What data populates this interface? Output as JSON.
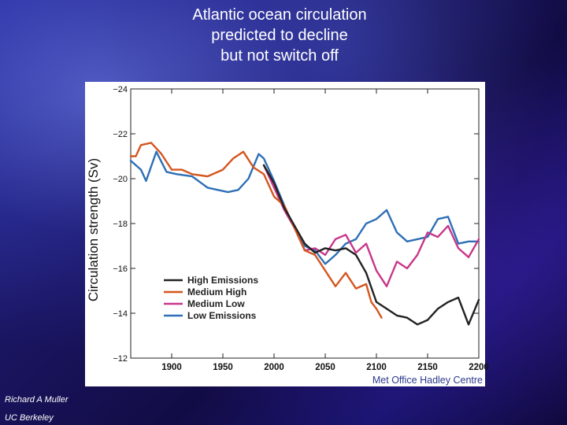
{
  "slide": {
    "title_lines": [
      "Atlantic ocean circulation",
      "predicted to decline",
      "but not switch off"
    ],
    "footer_lines": [
      "Richard A Muller",
      "UC Berkeley"
    ]
  },
  "chart_data": {
    "type": "line",
    "title": "",
    "xlabel": "",
    "ylabel": "Circulation strength (Sv)",
    "credit": "Met Office Hadley Centre",
    "xlim": [
      1860,
      2200
    ],
    "ylim": [
      -24,
      -12
    ],
    "y_inverted": true,
    "x_ticks": [
      1900,
      1950,
      2000,
      2050,
      2100,
      2150,
      2200
    ],
    "y_ticks": [
      -24,
      -22,
      -20,
      -18,
      -16,
      -14,
      -12
    ],
    "grid": false,
    "legend": {
      "position": "lower-left",
      "entries": [
        "High Emissions",
        "Medium High",
        "Medium Low",
        "Low Emissions"
      ]
    },
    "series": [
      {
        "name": "Low Emissions",
        "color": "#2e6fb5",
        "x": [
          1860,
          1870,
          1875,
          1885,
          1895,
          1905,
          1920,
          1935,
          1945,
          1955,
          1965,
          1975,
          1985,
          1990,
          2000,
          2010,
          2020,
          2030,
          2040,
          2050,
          2055,
          2060,
          2070,
          2080,
          2090,
          2100,
          2110,
          2120,
          2130,
          2140,
          2150,
          2160,
          2170,
          2180,
          2190,
          2200
        ],
        "y": [
          -20.8,
          -20.4,
          -19.9,
          -21.2,
          -20.3,
          -20.2,
          -20.1,
          -19.6,
          -19.5,
          -19.4,
          -19.5,
          -20.0,
          -21.1,
          -20.9,
          -19.9,
          -18.8,
          -17.8,
          -17.0,
          -16.8,
          -16.2,
          -16.4,
          -16.6,
          -17.1,
          -17.3,
          -18.0,
          -18.2,
          -18.6,
          -17.6,
          -17.2,
          -17.3,
          -17.4,
          -18.2,
          -18.3,
          -17.1,
          -17.2,
          -17.2
        ]
      },
      {
        "name": "Medium Low",
        "color": "#c8378a",
        "x": [
          1990,
          2000,
          2010,
          2020,
          2030,
          2040,
          2050,
          2060,
          2070,
          2080,
          2090,
          2100,
          2110,
          2120,
          2130,
          2140,
          2150,
          2160,
          2170,
          2180,
          2190,
          2200
        ],
        "y": [
          -20.6,
          -19.6,
          -18.6,
          -17.8,
          -16.8,
          -16.9,
          -16.6,
          -17.3,
          -17.5,
          -16.7,
          -17.1,
          -15.9,
          -15.2,
          -16.3,
          -16.0,
          -16.6,
          -17.6,
          -17.4,
          -17.9,
          -16.9,
          -16.5,
          -17.3
        ]
      },
      {
        "name": "Medium High",
        "color": "#d4561f",
        "x": [
          1860,
          1865,
          1870,
          1880,
          1890,
          1900,
          1910,
          1920,
          1935,
          1950,
          1960,
          1970,
          1980,
          1990,
          2000,
          2010,
          2020,
          2030,
          2040,
          2050,
          2060,
          2070,
          2080,
          2090,
          2095,
          2100,
          2105
        ],
        "y": [
          -21.0,
          -21.0,
          -21.5,
          -21.6,
          -21.1,
          -20.4,
          -20.4,
          -20.2,
          -20.1,
          -20.4,
          -20.9,
          -21.2,
          -20.5,
          -20.2,
          -19.2,
          -18.8,
          -17.8,
          -16.8,
          -16.6,
          -15.9,
          -15.2,
          -15.8,
          -15.1,
          -15.3,
          -14.5,
          -14.2,
          -13.8
        ]
      },
      {
        "name": "High Emissions",
        "color": "#222222",
        "x": [
          1990,
          2000,
          2010,
          2020,
          2030,
          2040,
          2050,
          2060,
          2070,
          2080,
          2090,
          2100,
          2110,
          2120,
          2130,
          2140,
          2150,
          2160,
          2170,
          2180,
          2190,
          2200
        ],
        "y": [
          -20.6,
          -19.8,
          -18.7,
          -17.9,
          -17.1,
          -16.7,
          -16.9,
          -16.8,
          -16.9,
          -16.6,
          -15.8,
          -14.5,
          -14.2,
          -13.9,
          -13.8,
          -13.5,
          -13.7,
          -14.2,
          -14.5,
          -14.7,
          -13.5,
          -14.6
        ]
      }
    ]
  }
}
